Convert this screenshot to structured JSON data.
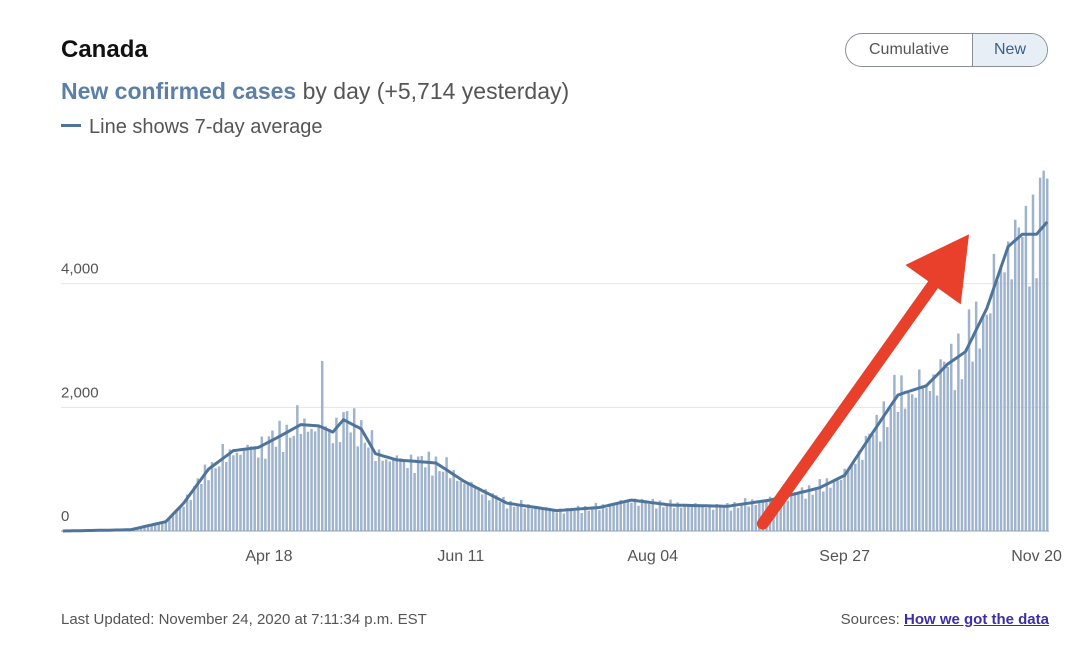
{
  "header": {
    "title": "Canada",
    "subtitle_metric": "New confirmed cases",
    "subtitle_rest": "by day (+5,714 yesterday)",
    "legend_text": "Line shows 7-day average"
  },
  "toggle": {
    "options": [
      "Cumulative",
      "New"
    ],
    "selected": "New"
  },
  "footer": {
    "last_updated": "Last Updated: November 24, 2020 at 7:11:34 p.m. EST",
    "sources_label": "Sources:",
    "sources_link": "How we got the data"
  },
  "colors": {
    "bar": "#9fb4cc",
    "line": "#4f749b",
    "arrow": "#e8402a",
    "metric": "#5b7fa6"
  },
  "annotation": {
    "type": "arrow",
    "color": "#e8402a",
    "from": {
      "x": "2020-09-04",
      "y": 120
    },
    "to": {
      "x": "2020-11-01",
      "y": 4800
    }
  },
  "chart_data": {
    "type": "bar",
    "title": "",
    "xlabel": "",
    "ylabel": "",
    "ylim": [
      0,
      6000
    ],
    "yticks": [
      0,
      2000,
      4000
    ],
    "ytick_labels": [
      "0",
      "2,000",
      "4,000"
    ],
    "xticks": [
      "2020-04-18",
      "2020-06-11",
      "2020-08-04",
      "2020-09-27",
      "2020-11-20"
    ],
    "xtick_labels": [
      "Apr 18",
      "Jun 11",
      "Aug 04",
      "Sep 27",
      "Nov 20"
    ],
    "x_start": "2020-02-20",
    "x_end": "2020-11-23",
    "grid": true,
    "overlay": {
      "type": "line",
      "name": "7-day average"
    },
    "key_values": [
      {
        "x": "2020-02-20",
        "y": 0
      },
      {
        "x": "2020-03-10",
        "y": 20
      },
      {
        "x": "2020-03-20",
        "y": 150
      },
      {
        "x": "2020-03-25",
        "y": 450
      },
      {
        "x": "2020-04-01",
        "y": 1000
      },
      {
        "x": "2020-04-08",
        "y": 1300
      },
      {
        "x": "2020-04-15",
        "y": 1350
      },
      {
        "x": "2020-04-20",
        "y": 1500
      },
      {
        "x": "2020-04-27",
        "y": 1720
      },
      {
        "x": "2020-05-02",
        "y": 1700
      },
      {
        "x": "2020-05-06",
        "y": 1600
      },
      {
        "x": "2020-05-09",
        "y": 1800
      },
      {
        "x": "2020-05-14",
        "y": 1650
      },
      {
        "x": "2020-05-18",
        "y": 1250
      },
      {
        "x": "2020-05-24",
        "y": 1150
      },
      {
        "x": "2020-06-04",
        "y": 1100
      },
      {
        "x": "2020-06-12",
        "y": 800
      },
      {
        "x": "2020-06-24",
        "y": 450
      },
      {
        "x": "2020-07-08",
        "y": 330
      },
      {
        "x": "2020-07-20",
        "y": 380
      },
      {
        "x": "2020-07-29",
        "y": 500
      },
      {
        "x": "2020-08-09",
        "y": 420
      },
      {
        "x": "2020-08-25",
        "y": 400
      },
      {
        "x": "2020-09-06",
        "y": 500
      },
      {
        "x": "2020-09-20",
        "y": 700
      },
      {
        "x": "2020-09-27",
        "y": 900
      },
      {
        "x": "2020-10-05",
        "y": 1600
      },
      {
        "x": "2020-10-12",
        "y": 2200
      },
      {
        "x": "2020-10-20",
        "y": 2350
      },
      {
        "x": "2020-10-26",
        "y": 2700
      },
      {
        "x": "2020-10-31",
        "y": 2900
      },
      {
        "x": "2020-11-06",
        "y": 3600
      },
      {
        "x": "2020-11-12",
        "y": 4600
      },
      {
        "x": "2020-11-16",
        "y": 4800
      },
      {
        "x": "2020-11-20",
        "y": 4800
      },
      {
        "x": "2020-11-23",
        "y": 5000
      }
    ],
    "spikes": [
      {
        "x": "2020-05-03",
        "y": 2750
      },
      {
        "x": "2020-11-21",
        "y": 5714
      },
      {
        "x": "2020-11-23",
        "y": 5700
      }
    ]
  }
}
